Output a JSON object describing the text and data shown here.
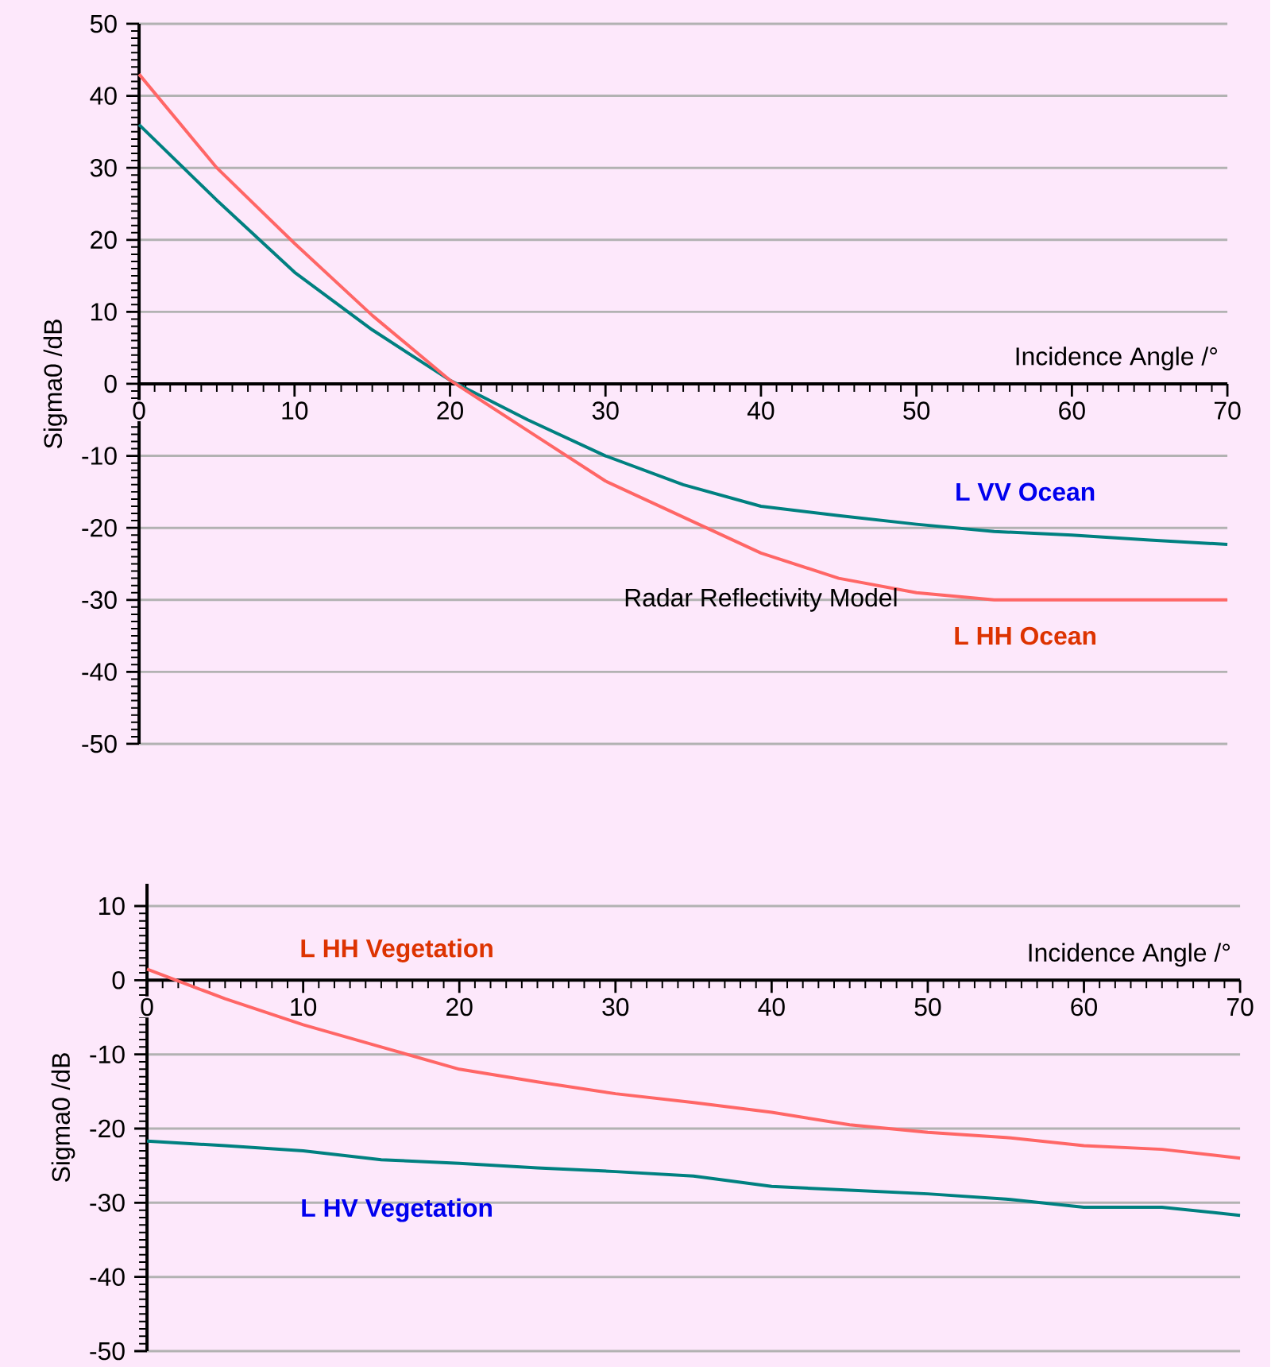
{
  "chart_data": [
    {
      "type": "line",
      "title": "Radar Reflectivity Model",
      "xlabel": "Incidence Angle /°",
      "ylabel": "Sigma0 /dB",
      "x": [
        0,
        5,
        10,
        15,
        20,
        25,
        30,
        35,
        40,
        45,
        50,
        55,
        60,
        65,
        70
      ],
      "xlim": [
        0,
        70
      ],
      "xticks": [
        0,
        10,
        20,
        30,
        40,
        50,
        60,
        70
      ],
      "ylim": [
        -50,
        50
      ],
      "yticks": [
        -50,
        -40,
        -30,
        -20,
        -10,
        0,
        10,
        20,
        30,
        40,
        50
      ],
      "grid": "y",
      "marker": "none",
      "line_style": "solid",
      "series": [
        {
          "name": "L VV Ocean",
          "color": "#008080",
          "values": [
            36,
            25.5,
            15.5,
            7.5,
            0.5,
            -5,
            -10,
            -14,
            -17,
            -18.3,
            -19.5,
            -20.5,
            -21,
            -21.7,
            -22.3
          ]
        },
        {
          "name": "L HH Ocean",
          "color": "#ff6666",
          "values": [
            43,
            30,
            19.5,
            9.5,
            0.5,
            -6.5,
            -13.5,
            -18.5,
            -23.5,
            -27,
            -29,
            -30,
            -30,
            -30,
            -30
          ]
        }
      ]
    },
    {
      "type": "line",
      "xlabel": "Incidence Angle /°",
      "ylabel": "Sigma0 /dB",
      "x": [
        0,
        5,
        10,
        15,
        20,
        25,
        30,
        35,
        40,
        45,
        50,
        55,
        60,
        65,
        70
      ],
      "xlim": [
        0,
        70
      ],
      "xticks": [
        0,
        10,
        20,
        30,
        40,
        50,
        60,
        70
      ],
      "ylim": [
        -50,
        13
      ],
      "yticks": [
        -50,
        -40,
        -30,
        -20,
        -10,
        0,
        10
      ],
      "grid": "y",
      "marker": "none",
      "line_style": "solid",
      "series": [
        {
          "name": "L HH Vegetation",
          "color": "#ff6666",
          "values": [
            1.5,
            -2.5,
            -6,
            -9,
            -12,
            -13.7,
            -15.3,
            -16.5,
            -17.8,
            -19.5,
            -20.5,
            -21.2,
            -22.3,
            -22.8,
            -24
          ]
        },
        {
          "name": "L HV Vegetation",
          "color": "#008080",
          "values": [
            -21.7,
            -22.3,
            -23,
            -24.2,
            -24.7,
            -25.3,
            -25.8,
            -26.4,
            -27.8,
            -28.3,
            -28.8,
            -29.5,
            -30.6,
            -30.6,
            -31.7
          ]
        }
      ]
    }
  ]
}
